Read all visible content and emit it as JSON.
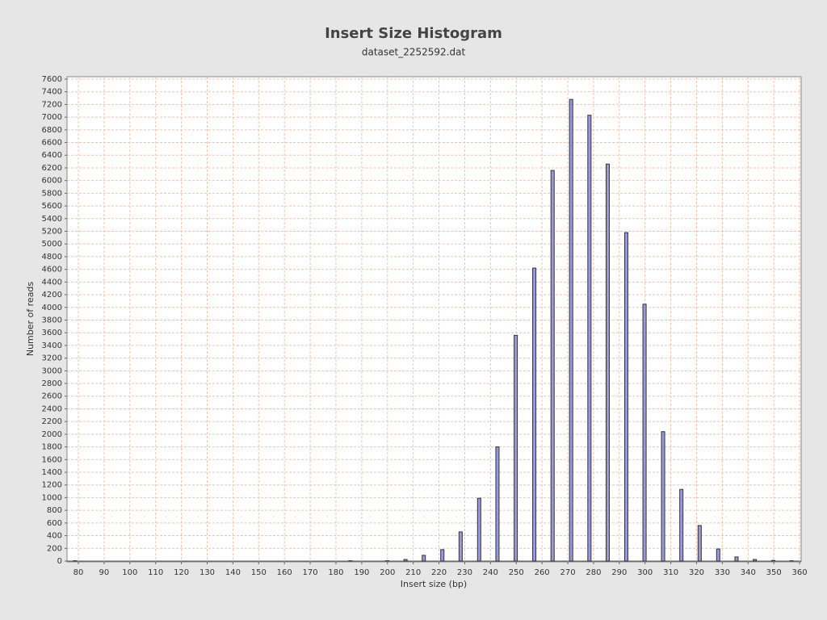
{
  "chart_data": {
    "type": "bar",
    "title": "Insert Size Histogram",
    "subtitle": "dataset_2252592.dat",
    "x_label": "Insert size (bp)",
    "y_label": "Number of reads",
    "x": [
      78.7,
      185.6,
      199.9,
      207,
      214.1,
      221.3,
      228.4,
      235.6,
      242.7,
      249.8,
      257,
      264.1,
      271.3,
      278.4,
      285.5,
      292.7,
      299.8,
      307,
      314.1,
      321.2,
      328.4,
      335.5,
      342.6,
      349.8,
      356.9
    ],
    "values": [
      5,
      5,
      5,
      25,
      90,
      180,
      460,
      990,
      1800,
      3560,
      4620,
      6160,
      7280,
      7030,
      6260,
      5180,
      4050,
      2040,
      1130,
      560,
      190,
      65,
      25,
      10,
      5
    ],
    "color": "#9999dd",
    "xlim": [
      75.6,
      360.6
    ],
    "ylim": [
      -13,
      7638
    ],
    "xticks": [
      80,
      90,
      100,
      110,
      120,
      130,
      140,
      150,
      160,
      170,
      180,
      190,
      200,
      210,
      220,
      230,
      240,
      250,
      260,
      270,
      280,
      290,
      300,
      310,
      320,
      330,
      340,
      350,
      360
    ],
    "yticks": [
      0,
      200,
      400,
      600,
      800,
      1000,
      1200,
      1400,
      1600,
      1800,
      2000,
      2200,
      2400,
      2600,
      2800,
      3000,
      3200,
      3400,
      3600,
      3800,
      4000,
      4200,
      4400,
      4600,
      4800,
      5000,
      5200,
      5400,
      5600,
      5800,
      6000,
      6200,
      6400,
      6600,
      6800,
      7000,
      7200,
      7400,
      7600
    ],
    "grid": true
  }
}
